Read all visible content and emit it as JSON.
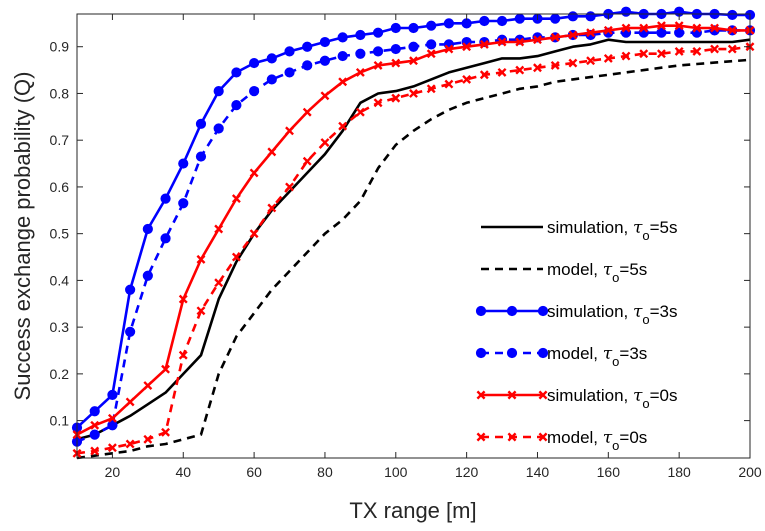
{
  "chart_data": {
    "type": "line",
    "xlabel": "TX range [m]",
    "ylabel": "Success exchange probability (Q)",
    "xlim": [
      10,
      200
    ],
    "ylim": [
      0.02,
      0.97
    ],
    "xticks": [
      20,
      40,
      60,
      80,
      100,
      120,
      140,
      160,
      180,
      200
    ],
    "yticks": [
      0.1,
      0.2,
      0.3,
      0.4,
      0.5,
      0.6,
      0.7,
      0.8,
      0.9
    ],
    "grid": false,
    "legend_position": "right",
    "x": [
      10,
      15,
      20,
      25,
      30,
      35,
      40,
      45,
      50,
      55,
      60,
      65,
      70,
      75,
      80,
      85,
      90,
      95,
      100,
      105,
      110,
      115,
      120,
      125,
      130,
      135,
      140,
      145,
      150,
      155,
      160,
      165,
      170,
      175,
      180,
      185,
      190,
      195,
      200
    ],
    "series": [
      {
        "name": "simulation, τo=5s",
        "legend_prefix": "simulation, ",
        "legend_tau": "τ",
        "legend_sub": "o",
        "legend_suffix": "=5s",
        "color": "#000000",
        "style": "solid",
        "marker": "none",
        "values": [
          0.06,
          0.07,
          0.09,
          0.11,
          0.135,
          0.16,
          0.2,
          0.24,
          0.36,
          0.44,
          0.5,
          0.55,
          0.59,
          0.63,
          0.67,
          0.72,
          0.78,
          0.8,
          0.805,
          0.815,
          0.83,
          0.845,
          0.855,
          0.865,
          0.875,
          0.875,
          0.88,
          0.89,
          0.9,
          0.905,
          0.915,
          0.91,
          0.91,
          0.91,
          0.91,
          0.91,
          0.91,
          0.91,
          0.915
        ]
      },
      {
        "name": "model, τo=5s",
        "legend_prefix": "model, ",
        "legend_tau": "τ",
        "legend_sub": "o",
        "legend_suffix": "=5s",
        "color": "#000000",
        "style": "dashed",
        "marker": "none",
        "values": [
          0.02,
          0.025,
          0.03,
          0.035,
          0.045,
          0.05,
          0.06,
          0.07,
          0.2,
          0.28,
          0.33,
          0.38,
          0.42,
          0.46,
          0.5,
          0.53,
          0.57,
          0.64,
          0.69,
          0.72,
          0.745,
          0.765,
          0.78,
          0.79,
          0.8,
          0.81,
          0.815,
          0.825,
          0.83,
          0.835,
          0.84,
          0.845,
          0.85,
          0.855,
          0.86,
          0.863,
          0.866,
          0.869,
          0.872
        ]
      },
      {
        "name": "simulation, τo=3s",
        "legend_prefix": "simulation, ",
        "legend_tau": "τ",
        "legend_sub": "o",
        "legend_suffix": "=3s",
        "color": "#0000ff",
        "style": "solid",
        "marker": "circle",
        "values": [
          0.085,
          0.12,
          0.155,
          0.38,
          0.51,
          0.575,
          0.65,
          0.735,
          0.805,
          0.845,
          0.865,
          0.875,
          0.89,
          0.9,
          0.91,
          0.92,
          0.925,
          0.93,
          0.94,
          0.94,
          0.945,
          0.95,
          0.95,
          0.955,
          0.955,
          0.96,
          0.96,
          0.96,
          0.965,
          0.965,
          0.97,
          0.975,
          0.97,
          0.97,
          0.975,
          0.97,
          0.97,
          0.968,
          0.968
        ]
      },
      {
        "name": "model, τo=3s",
        "legend_prefix": "model, ",
        "legend_tau": "τ",
        "legend_sub": "o",
        "legend_suffix": "=3s",
        "color": "#0000ff",
        "style": "dashed",
        "marker": "circle",
        "values": [
          0.055,
          0.07,
          0.09,
          0.29,
          0.41,
          0.49,
          0.565,
          0.665,
          0.725,
          0.775,
          0.805,
          0.83,
          0.845,
          0.86,
          0.87,
          0.88,
          0.885,
          0.89,
          0.895,
          0.9,
          0.905,
          0.905,
          0.91,
          0.91,
          0.915,
          0.915,
          0.92,
          0.92,
          0.925,
          0.925,
          0.93,
          0.93,
          0.93,
          0.93,
          0.93,
          0.93,
          0.935,
          0.935,
          0.935
        ]
      },
      {
        "name": "simulation, τo=0s",
        "legend_prefix": "simulation, ",
        "legend_tau": "τ",
        "legend_sub": "o",
        "legend_suffix": "=0s",
        "color": "#ff0000",
        "style": "solid",
        "marker": "x",
        "values": [
          0.07,
          0.09,
          0.105,
          0.14,
          0.175,
          0.21,
          0.36,
          0.445,
          0.51,
          0.575,
          0.63,
          0.675,
          0.72,
          0.76,
          0.795,
          0.825,
          0.845,
          0.86,
          0.865,
          0.87,
          0.885,
          0.895,
          0.9,
          0.905,
          0.91,
          0.91,
          0.915,
          0.92,
          0.925,
          0.93,
          0.935,
          0.94,
          0.94,
          0.945,
          0.945,
          0.94,
          0.94,
          0.935,
          0.935
        ]
      },
      {
        "name": "model, τo=0s",
        "legend_prefix": "model, ",
        "legend_tau": "τ",
        "legend_sub": "o",
        "legend_suffix": "=0s",
        "color": "#ff0000",
        "style": "dashed",
        "marker": "x",
        "values": [
          0.03,
          0.035,
          0.042,
          0.05,
          0.06,
          0.075,
          0.24,
          0.335,
          0.395,
          0.45,
          0.5,
          0.555,
          0.6,
          0.655,
          0.695,
          0.73,
          0.76,
          0.78,
          0.79,
          0.8,
          0.81,
          0.82,
          0.83,
          0.84,
          0.845,
          0.85,
          0.855,
          0.86,
          0.865,
          0.87,
          0.875,
          0.88,
          0.885,
          0.885,
          0.89,
          0.89,
          0.895,
          0.895,
          0.9
        ]
      }
    ]
  }
}
